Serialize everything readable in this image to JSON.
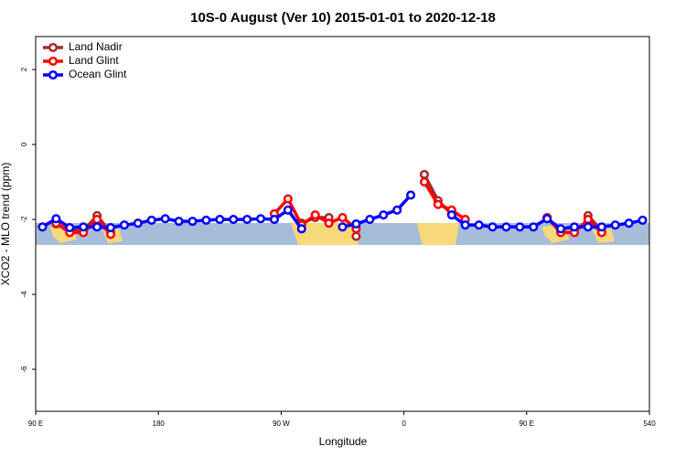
{
  "chart_data": {
    "type": "line",
    "title": "10S-0 August (Ver 10)   2015-01-01 to 2020-12-18",
    "xlabel": "Longitude",
    "ylabel": "XCO2 - MLO trend (ppm)",
    "x": [
      95,
      105,
      115,
      125,
      135,
      145,
      155,
      165,
      175,
      185,
      195,
      205,
      215,
      225,
      235,
      245,
      255,
      265,
      275,
      285,
      295,
      305,
      315,
      325,
      335,
      345,
      355,
      365,
      375,
      385,
      395,
      405,
      415,
      425,
      435,
      445,
      455,
      465,
      475,
      485,
      495,
      505,
      515,
      525,
      535
    ],
    "series": [
      {
        "name": "Land Nadir",
        "color": "#a52a2a",
        "values": [
          null,
          -2.12,
          -2.3,
          -2.3,
          -1.9,
          -2.35,
          null,
          null,
          null,
          null,
          null,
          null,
          null,
          null,
          null,
          null,
          null,
          null,
          null,
          -2.1,
          -1.95,
          -1.95,
          null,
          -2.45,
          null,
          null,
          null,
          null,
          -0.8,
          -1.5,
          -1.85,
          null,
          null,
          null,
          null,
          null,
          null,
          -1.95,
          -2.3,
          null,
          -1.9,
          -2.3,
          null,
          null,
          null
        ]
      },
      {
        "name": "Land Glint",
        "color": "#ff0000",
        "values": [
          null,
          -2.1,
          -2.35,
          -2.35,
          -2.0,
          -2.4,
          null,
          null,
          null,
          null,
          null,
          null,
          null,
          null,
          null,
          null,
          null,
          -1.85,
          -1.45,
          -2.15,
          -1.88,
          -2.1,
          -1.95,
          -2.25,
          null,
          null,
          null,
          null,
          -1.0,
          -1.6,
          -1.75,
          -2.0,
          null,
          null,
          null,
          null,
          null,
          -1.95,
          -2.35,
          -2.35,
          -2.0,
          -2.35,
          null,
          null,
          null
        ]
      },
      {
        "name": "Ocean Glint",
        "color": "#0000ff",
        "values": [
          -2.2,
          -1.98,
          -2.22,
          -2.2,
          -2.2,
          -2.22,
          -2.15,
          -2.1,
          -2.02,
          -1.98,
          -2.05,
          -2.05,
          -2.02,
          -2.0,
          -2.0,
          -2.0,
          -1.98,
          -2.0,
          -1.75,
          -2.25,
          null,
          null,
          -2.2,
          -2.12,
          -2.0,
          -1.88,
          -1.75,
          -1.35,
          null,
          null,
          -1.88,
          -2.15,
          -2.15,
          -2.2,
          -2.2,
          -2.2,
          -2.2,
          -1.98,
          -2.25,
          -2.2,
          -2.2,
          -2.2,
          -2.15,
          -2.1,
          -2.02
        ]
      }
    ],
    "xlim": [
      90,
      540
    ],
    "xticks": [
      {
        "value": 90,
        "label": "90 E"
      },
      180,
      {
        "value": 270,
        "label": "90 W"
      },
      {
        "value": 360,
        "label": "0"
      },
      {
        "value": 450,
        "label": "90 E"
      },
      540
    ],
    "ylim": [
      -7.12,
      2.88
    ],
    "yticks": [
      -6,
      -4,
      -2,
      0,
      2
    ],
    "legend": "top-left"
  }
}
